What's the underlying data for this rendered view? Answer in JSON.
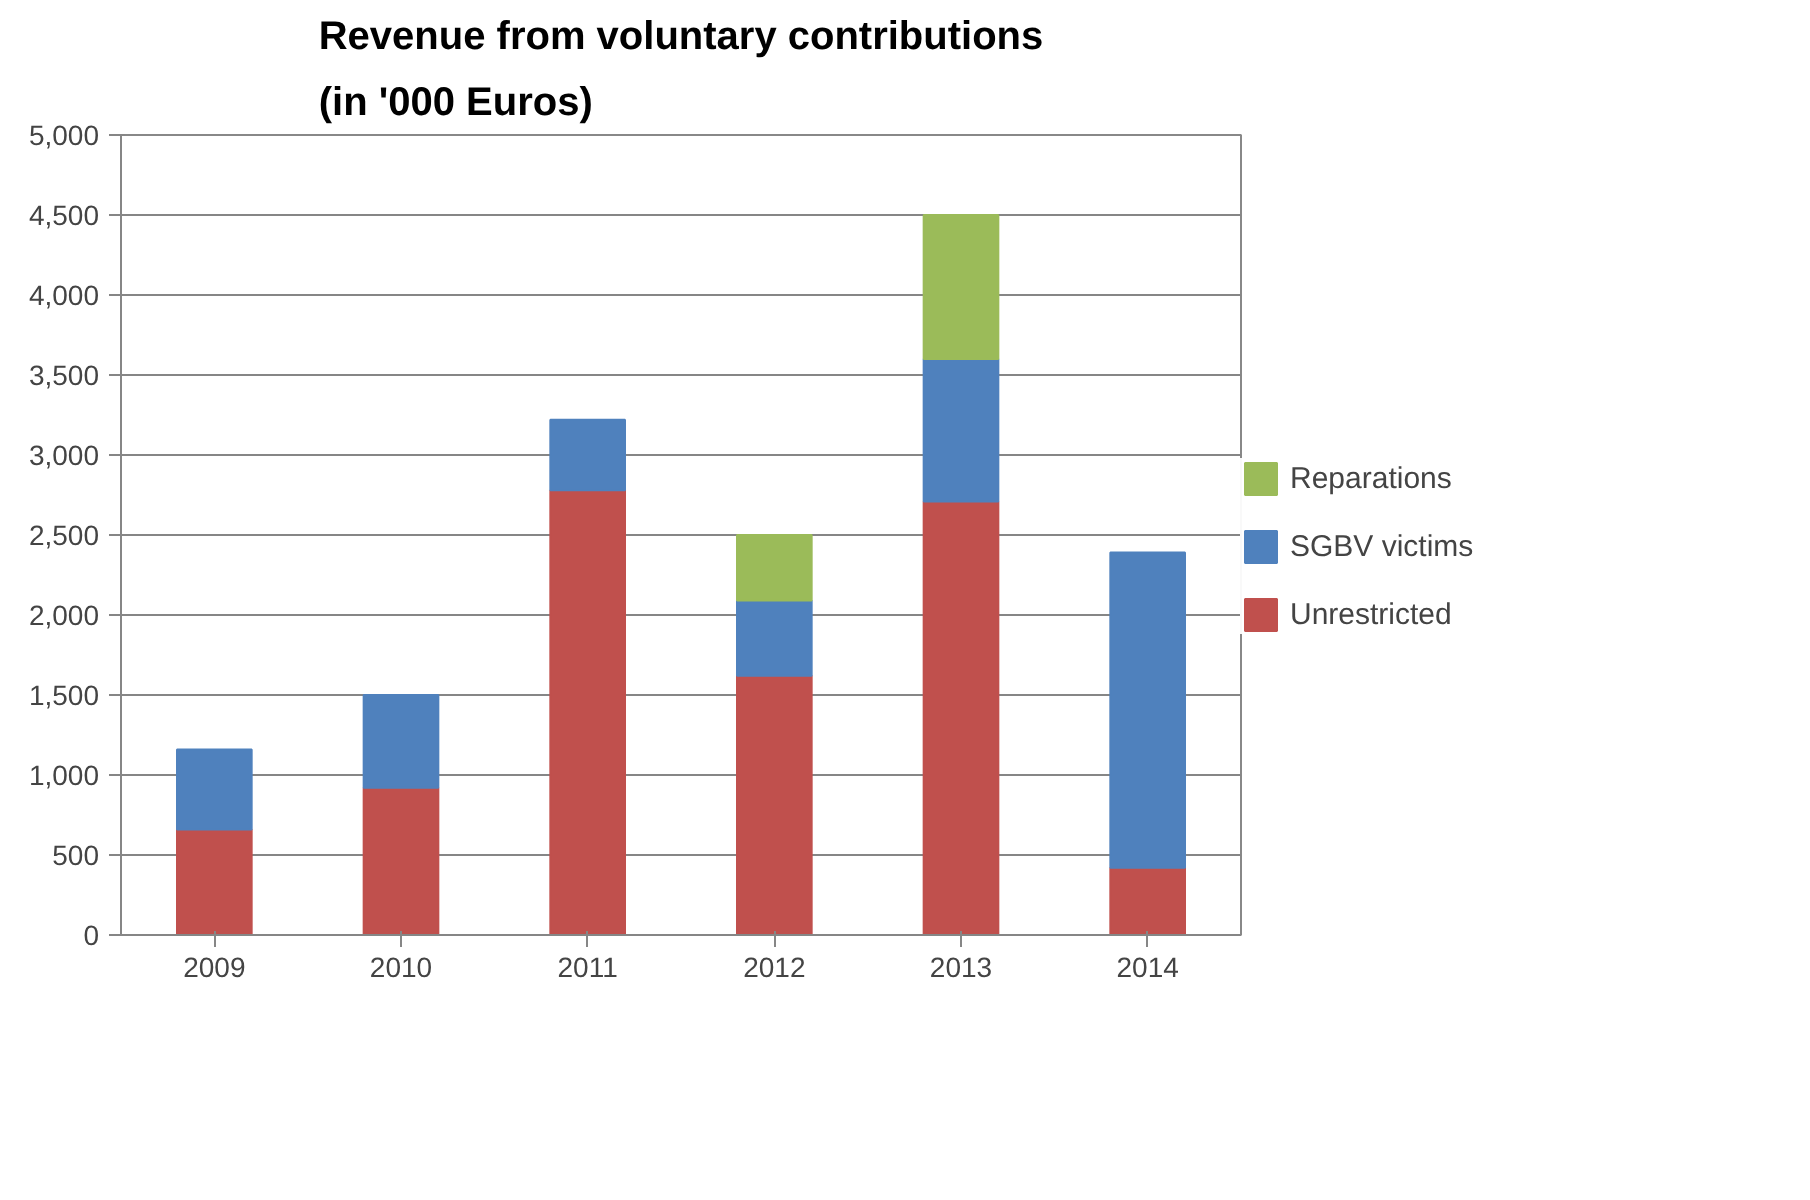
{
  "chart_data": {
    "type": "bar",
    "title": "Revenue from voluntary contributions\n(in '000 Euros)",
    "categories": [
      "2009",
      "2010",
      "2011",
      "2012",
      "2013",
      "2014"
    ],
    "stacked": true,
    "series": [
      {
        "name": "Unrestricted",
        "color": "#c0504d",
        "values": [
          660,
          920,
          2780,
          1620,
          2710,
          420
        ]
      },
      {
        "name": "SGBV victims",
        "color": "#4f81bd",
        "values": [
          500,
          580,
          440,
          470,
          890,
          1970
        ]
      },
      {
        "name": "Reparations",
        "color": "#9bbb59",
        "values": [
          null,
          null,
          null,
          410,
          900,
          null
        ]
      }
    ],
    "ylim": [
      0,
      5000
    ],
    "yticks": [
      0,
      500,
      {
        "value": 1000,
        "label": "1,000"
      },
      {
        "value": 1500,
        "label": "1,500"
      },
      {
        "value": 2000,
        "label": "2,000"
      },
      {
        "value": 2500,
        "label": "2,500"
      },
      {
        "value": 3000,
        "label": "3,000"
      },
      {
        "value": 3500,
        "label": "3,500"
      },
      {
        "value": 4000,
        "label": "4,000"
      },
      {
        "value": 4500,
        "label": "4,500"
      },
      {
        "value": 5000,
        "label": "5,000"
      }
    ],
    "grid": "y",
    "legend": "right"
  }
}
